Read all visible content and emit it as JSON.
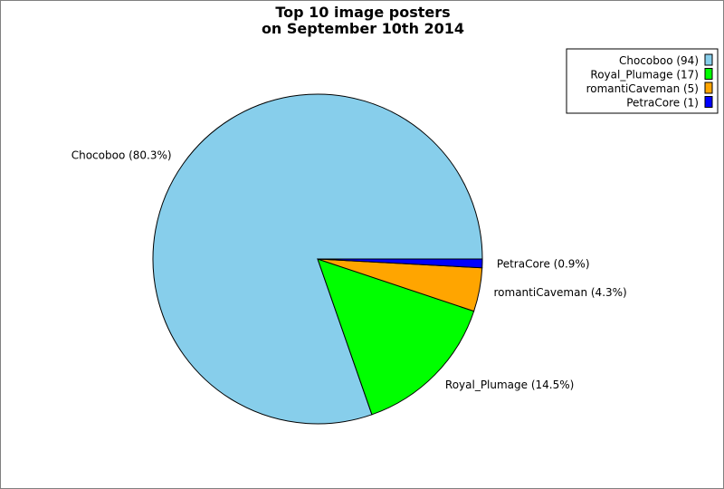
{
  "chart_data": {
    "type": "pie",
    "title": "Top 10 image posters",
    "subtitle": "on September 10th 2014",
    "slices": [
      {
        "name": "Chocoboo",
        "value": 94,
        "percent_label": "Chocoboo (80.3%)",
        "legend_label": "Chocoboo (94)",
        "color": "#87ceeb"
      },
      {
        "name": "Royal_Plumage",
        "value": 17,
        "percent_label": "Royal_Plumage (14.5%)",
        "legend_label": "Royal_Plumage (17)",
        "color": "#00ff00"
      },
      {
        "name": "romantiCaveman",
        "value": 5,
        "percent_label": "romantiCaveman (4.3%)",
        "legend_label": "romantiCaveman (5)",
        "color": "#ffa500"
      },
      {
        "name": "PetraCore",
        "value": 1,
        "percent_label": "PetraCore (0.9%)",
        "legend_label": "PetraCore (1)",
        "color": "#0000ff"
      }
    ],
    "legend_position": "top-right",
    "start_angle_deg": 0,
    "direction": "counterclockwise"
  }
}
